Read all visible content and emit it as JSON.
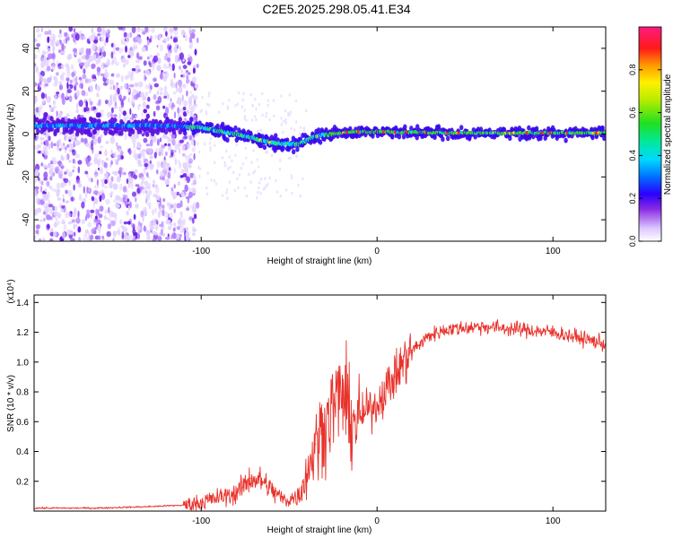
{
  "title": "C2E5.2025.298.05.41.E34",
  "colors": {
    "signal": "#e8322b",
    "axis": "#000000",
    "background": "#ffffff"
  },
  "chart_data": [
    {
      "type": "heatmap",
      "name": "spectrogram",
      "xlabel": "Height of straight line (km)",
      "ylabel": "Frequency (Hz)",
      "xlim": [
        -195,
        130
      ],
      "ylim": [
        -50,
        50
      ],
      "xticks": [
        -100,
        0,
        100
      ],
      "yticks": [
        -40,
        -20,
        0,
        20,
        40
      ],
      "colorbar": {
        "label": "Normalized spectral amplitude",
        "range": [
          0,
          1
        ],
        "ticks": [
          "0.0",
          "0.2",
          "0.4",
          "0.6",
          "0.8"
        ],
        "tick_values": [
          0.0,
          0.2,
          0.4,
          0.6,
          0.8
        ]
      },
      "ridge": {
        "description": "peak frequency vs height",
        "x": [
          -195,
          -150,
          -120,
          -100,
          -80,
          -60,
          -45,
          -35,
          -25,
          -15,
          0,
          50,
          100,
          130
        ],
        "y": [
          4,
          4,
          4,
          3,
          0,
          -4,
          -5,
          -1,
          0,
          1,
          1,
          0.5,
          0.5,
          0.5
        ]
      },
      "noise_region_x": [
        -195,
        -110
      ]
    },
    {
      "type": "line",
      "name": "snr",
      "xlabel": "Height of straight line (km)",
      "ylabel": "SNR (10 * v/v)",
      "multiplier": "(x10⁴)",
      "xlim": [
        -195,
        130
      ],
      "ylim": [
        0,
        1.45
      ],
      "xticks": [
        -100,
        0,
        100
      ],
      "yticks": [
        "0.2",
        "0.4",
        "0.6",
        "0.8",
        "1.0",
        "1.2",
        "1.4"
      ],
      "ytick_values": [
        0.2,
        0.4,
        0.6,
        0.8,
        1.0,
        1.2,
        1.4
      ],
      "series": [
        {
          "name": "SNR",
          "x": [
            -195,
            -160,
            -130,
            -110,
            -100,
            -90,
            -80,
            -72,
            -65,
            -58,
            -52,
            -45,
            -40,
            -35,
            -30,
            -25,
            -20,
            -15,
            -10,
            -5,
            0,
            5,
            10,
            15,
            20,
            30,
            40,
            60,
            80,
            100,
            120,
            130
          ],
          "y": [
            0.02,
            0.02,
            0.03,
            0.04,
            0.06,
            0.09,
            0.12,
            0.22,
            0.2,
            0.12,
            0.07,
            0.1,
            0.25,
            0.45,
            0.58,
            0.7,
            0.8,
            0.6,
            0.62,
            0.68,
            0.72,
            0.82,
            0.9,
            1.0,
            1.08,
            1.18,
            1.22,
            1.24,
            1.22,
            1.2,
            1.15,
            1.12
          ]
        }
      ]
    }
  ]
}
